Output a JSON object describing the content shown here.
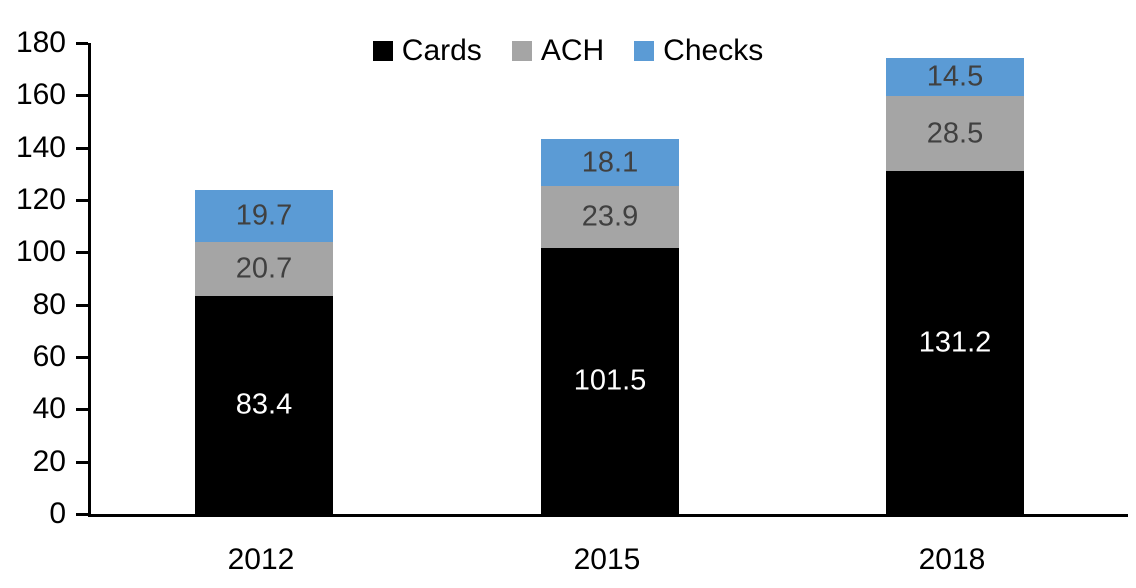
{
  "chart_data": {
    "type": "bar",
    "stacked": true,
    "title": "",
    "xlabel": "",
    "ylabel": "",
    "categories": [
      "2012",
      "2015",
      "2018"
    ],
    "series": [
      {
        "name": "Cards",
        "color": "#000000",
        "label_color": "#ffffff",
        "values": [
          83.4,
          101.5,
          131.2
        ]
      },
      {
        "name": "ACH",
        "color": "#A5A5A5",
        "label_color": "#404040",
        "values": [
          20.7,
          23.9,
          28.5
        ]
      },
      {
        "name": "Checks",
        "color": "#5B9BD5",
        "label_color": "#404040",
        "values": [
          19.7,
          18.1,
          14.5
        ]
      }
    ],
    "ylim": [
      0,
      180
    ],
    "yticks": [
      0,
      20,
      40,
      60,
      80,
      100,
      120,
      140,
      160,
      180
    ],
    "grid": false,
    "legend_position": "top-center",
    "axis_color": "#000000"
  }
}
